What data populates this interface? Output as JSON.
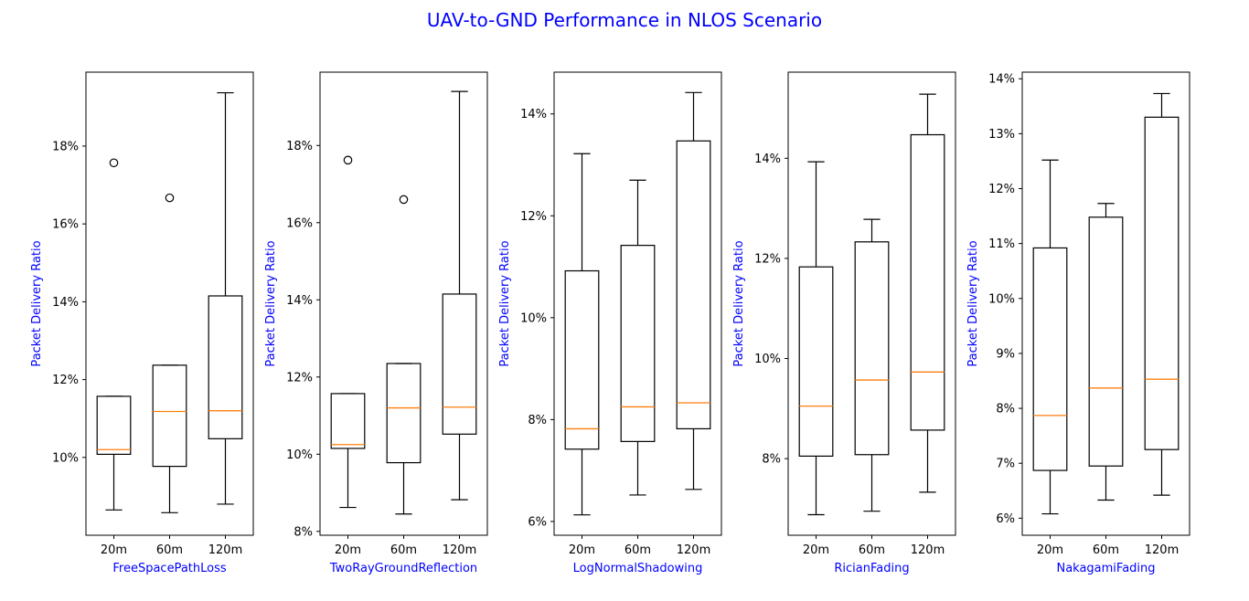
{
  "figure": {
    "title": "UAV-to-GND Performance in NLOS Scenario",
    "title_color": "#0000ff"
  },
  "colors": {
    "box": "#000000",
    "median": "#ff7f0e",
    "outlier": "#000000",
    "label": "#0000ff"
  },
  "chart_data": [
    {
      "type": "box",
      "xlabel": "FreeSpacePathLoss",
      "ylabel": "Packet Delivery Ratio",
      "categories": [
        "20m",
        "60m",
        "120m"
      ],
      "yticks": [
        "10%",
        "12%",
        "14%",
        "16%",
        "18%"
      ],
      "ytick_values": [
        10,
        12,
        14,
        16,
        18
      ],
      "ylim": [
        8.0,
        19.9
      ],
      "boxes": [
        {
          "whisker_low": 8.65,
          "q1": 10.08,
          "median": 10.2,
          "q3": 11.57,
          "whisker_high": 11.57,
          "outliers": [
            17.57
          ]
        },
        {
          "whisker_low": 8.58,
          "q1": 9.77,
          "median": 11.18,
          "q3": 12.37,
          "whisker_high": 12.37,
          "outliers": [
            16.67
          ]
        },
        {
          "whisker_low": 8.8,
          "q1": 10.48,
          "median": 11.2,
          "q3": 14.15,
          "whisker_high": 19.37,
          "outliers": []
        }
      ]
    },
    {
      "type": "box",
      "xlabel": "TwoRayGroundReflection",
      "ylabel": "Packet Delivery Ratio",
      "categories": [
        "20m",
        "60m",
        "120m"
      ],
      "yticks": [
        "8%",
        "10%",
        "12%",
        "14%",
        "16%",
        "18%"
      ],
      "ytick_values": [
        8,
        10,
        12,
        14,
        16,
        18
      ],
      "ylim": [
        7.9,
        19.9
      ],
      "boxes": [
        {
          "whisker_low": 8.62,
          "q1": 10.15,
          "median": 10.25,
          "q3": 11.57,
          "whisker_high": 11.57,
          "outliers": [
            17.62
          ]
        },
        {
          "whisker_low": 8.45,
          "q1": 9.78,
          "median": 11.2,
          "q3": 12.35,
          "whisker_high": 12.35,
          "outliers": [
            16.6
          ]
        },
        {
          "whisker_low": 8.82,
          "q1": 10.52,
          "median": 11.22,
          "q3": 14.15,
          "whisker_high": 19.4,
          "outliers": []
        }
      ]
    },
    {
      "type": "box",
      "xlabel": "LogNormalShadowing",
      "ylabel": "Packet Delivery Ratio",
      "categories": [
        "20m",
        "60m",
        "120m"
      ],
      "yticks": [
        "6%",
        "8%",
        "10%",
        "12%",
        "14%"
      ],
      "ytick_values": [
        6,
        8,
        10,
        12,
        14
      ],
      "ylim": [
        5.73,
        14.82
      ],
      "boxes": [
        {
          "whisker_low": 6.13,
          "q1": 7.42,
          "median": 7.82,
          "q3": 10.92,
          "whisker_high": 13.22,
          "outliers": []
        },
        {
          "whisker_low": 6.52,
          "q1": 7.57,
          "median": 8.25,
          "q3": 11.42,
          "whisker_high": 12.7,
          "outliers": []
        },
        {
          "whisker_low": 6.63,
          "q1": 7.82,
          "median": 8.33,
          "q3": 13.47,
          "whisker_high": 14.42,
          "outliers": []
        }
      ]
    },
    {
      "type": "box",
      "xlabel": "RicianFading",
      "ylabel": "Packet Delivery Ratio",
      "categories": [
        "20m",
        "60m",
        "120m"
      ],
      "yticks": [
        "8%",
        "10%",
        "12%",
        "14%"
      ],
      "ytick_values": [
        8,
        10,
        12,
        14
      ],
      "ylim": [
        6.47,
        15.72
      ],
      "boxes": [
        {
          "whisker_low": 6.88,
          "q1": 8.05,
          "median": 9.05,
          "q3": 11.83,
          "whisker_high": 13.93,
          "outliers": []
        },
        {
          "whisker_low": 6.95,
          "q1": 8.08,
          "median": 9.57,
          "q3": 12.33,
          "whisker_high": 12.78,
          "outliers": []
        },
        {
          "whisker_low": 7.33,
          "q1": 8.57,
          "median": 9.73,
          "q3": 14.47,
          "whisker_high": 15.28,
          "outliers": []
        }
      ]
    },
    {
      "type": "box",
      "xlabel": "NakagamiFading",
      "ylabel": "Packet Delivery Ratio",
      "categories": [
        "20m",
        "60m",
        "120m"
      ],
      "yticks": [
        "6%",
        "7%",
        "8%",
        "9%",
        "10%",
        "11%",
        "12%",
        "13%",
        "14%"
      ],
      "ytick_values": [
        6,
        7,
        8,
        9,
        10,
        11,
        12,
        13,
        14
      ],
      "ylim": [
        5.69,
        14.12
      ],
      "boxes": [
        {
          "whisker_low": 6.08,
          "q1": 6.87,
          "median": 7.87,
          "q3": 10.92,
          "whisker_high": 12.52,
          "outliers": []
        },
        {
          "whisker_low": 6.33,
          "q1": 6.95,
          "median": 8.37,
          "q3": 11.48,
          "whisker_high": 11.73,
          "outliers": []
        },
        {
          "whisker_low": 6.42,
          "q1": 7.25,
          "median": 8.53,
          "q3": 13.3,
          "whisker_high": 13.73,
          "outliers": []
        }
      ]
    }
  ]
}
